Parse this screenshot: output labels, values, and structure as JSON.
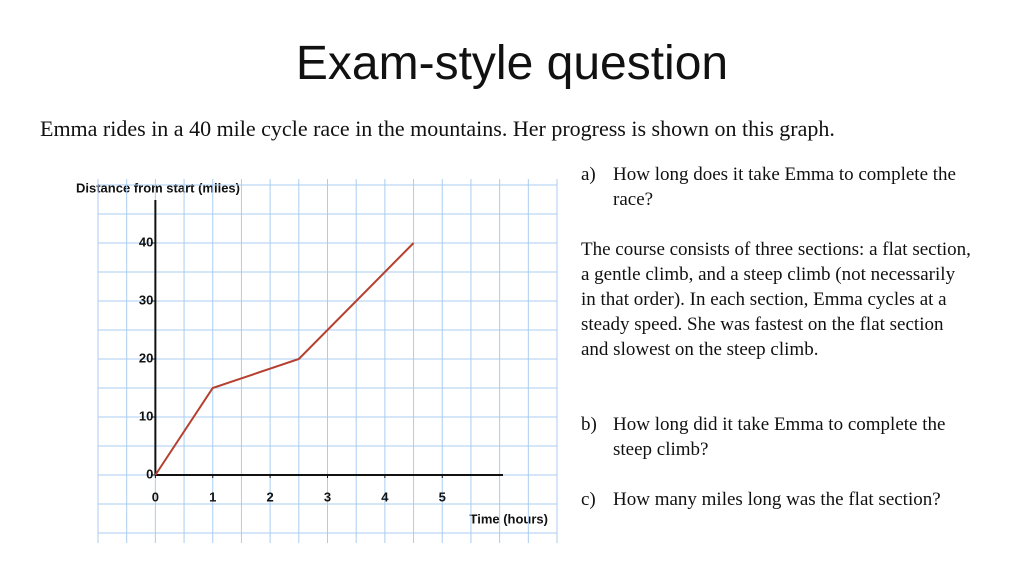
{
  "title": "Exam-style question",
  "intro": "Emma rides in a 40 mile cycle race in the mountains. Her progress is shown on this graph.",
  "questions": [
    {
      "label": "a)",
      "text": "How long does it take Emma to complete the race?"
    },
    {
      "text": "The course consists of three sections: a flat section, a gentle climb, and a steep climb (not necessarily in that order). In each section, Emma cycles at a steady speed. She was fastest on the flat section and slowest on the steep climb."
    },
    {
      "label": "b)",
      "text": "How long did it take Emma to complete the steep climb?"
    },
    {
      "label": "c)",
      "text": "How many miles long was the flat section?"
    }
  ],
  "chart_data": {
    "type": "line",
    "x_label": "Time (hours)",
    "y_label": "Distance from start (miles)",
    "x": [
      0,
      1,
      2.5,
      4.5
    ],
    "values": [
      0,
      15,
      20,
      40
    ],
    "color": "#b5402f",
    "xlim": [
      -1,
      7
    ],
    "ylim": [
      -10,
      50
    ],
    "xticks": [
      0,
      1,
      2,
      3,
      4,
      5
    ],
    "yticks": [
      0,
      10,
      20,
      30,
      40
    ],
    "grid": true,
    "grid_color": "#a9cdf0",
    "x_grid": [
      -1,
      -0.5,
      0,
      0.5,
      1,
      1.5,
      2,
      2.5,
      3,
      3.5,
      4,
      4.5,
      5,
      5.5,
      6,
      6.5,
      7
    ],
    "y_grid": [
      -10,
      -5,
      0,
      5,
      10,
      15,
      20,
      25,
      30,
      35,
      40,
      45,
      50
    ]
  }
}
